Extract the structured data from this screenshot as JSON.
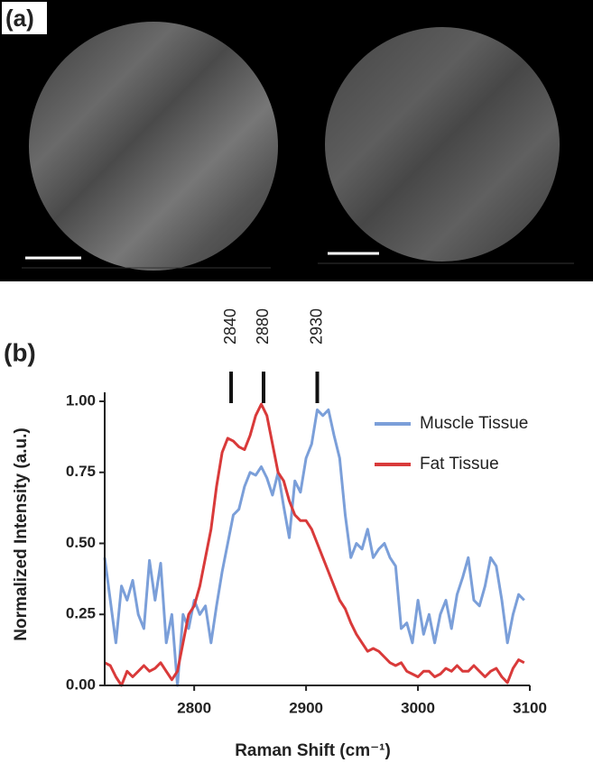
{
  "panel_a_label": "(a)",
  "chart_data": {
    "type": "line",
    "panel_label": "(b)",
    "xlabel": "Raman Shift (cm⁻¹)",
    "ylabel": "Normalized Intensity (a.u.)",
    "xlim": [
      2720,
      3100
    ],
    "xticks": [
      2800,
      2900,
      3000,
      3100
    ],
    "ylim": [
      0,
      1
    ],
    "yticks": [
      {
        "value": 0,
        "label": "0.00"
      },
      {
        "value": 0.25,
        "label": "0.25"
      },
      {
        "value": 0.5,
        "label": "0.50"
      },
      {
        "value": 0.75,
        "label": "0.75"
      },
      {
        "value": 1,
        "label": "1.00"
      }
    ],
    "legend": "upper right",
    "peak_markers": [
      {
        "label": "2840",
        "x": 2833
      },
      {
        "label": "2880",
        "x": 2862
      },
      {
        "label": "2930",
        "x": 2910
      }
    ],
    "x": [
      2720,
      2725,
      2730,
      2735,
      2740,
      2745,
      2750,
      2755,
      2760,
      2765,
      2770,
      2775,
      2780,
      2785,
      2790,
      2795,
      2800,
      2805,
      2810,
      2815,
      2820,
      2825,
      2830,
      2835,
      2840,
      2845,
      2850,
      2855,
      2860,
      2865,
      2870,
      2875,
      2880,
      2885,
      2890,
      2895,
      2900,
      2905,
      2910,
      2915,
      2920,
      2925,
      2930,
      2935,
      2940,
      2945,
      2950,
      2955,
      2960,
      2965,
      2970,
      2975,
      2980,
      2985,
      2990,
      2995,
      3000,
      3005,
      3010,
      3015,
      3020,
      3025,
      3030,
      3035,
      3040,
      3045,
      3050,
      3055,
      3060,
      3065,
      3070,
      3075,
      3080,
      3085,
      3090,
      3095
    ],
    "series": [
      {
        "name": "Muscle Tissue",
        "color": "#7b9fd9",
        "values": [
          0.45,
          0.3,
          0.15,
          0.35,
          0.3,
          0.37,
          0.25,
          0.2,
          0.44,
          0.3,
          0.43,
          0.15,
          0.25,
          0.0,
          0.25,
          0.2,
          0.3,
          0.25,
          0.28,
          0.15,
          0.28,
          0.4,
          0.5,
          0.6,
          0.62,
          0.7,
          0.75,
          0.74,
          0.77,
          0.73,
          0.67,
          0.75,
          0.63,
          0.52,
          0.72,
          0.68,
          0.8,
          0.85,
          0.97,
          0.95,
          0.97,
          0.88,
          0.8,
          0.6,
          0.45,
          0.5,
          0.48,
          0.55,
          0.45,
          0.48,
          0.5,
          0.45,
          0.42,
          0.2,
          0.22,
          0.15,
          0.3,
          0.18,
          0.25,
          0.15,
          0.25,
          0.3,
          0.2,
          0.32,
          0.38,
          0.45,
          0.3,
          0.28,
          0.35,
          0.45,
          0.42,
          0.3,
          0.15,
          0.25,
          0.32,
          0.3
        ]
      },
      {
        "name": "Fat Tissue",
        "color": "#d93a3a",
        "values": [
          0.08,
          0.07,
          0.03,
          0.0,
          0.05,
          0.03,
          0.05,
          0.07,
          0.05,
          0.06,
          0.08,
          0.05,
          0.02,
          0.05,
          0.15,
          0.25,
          0.28,
          0.35,
          0.45,
          0.55,
          0.7,
          0.82,
          0.87,
          0.86,
          0.84,
          0.83,
          0.88,
          0.95,
          0.99,
          0.95,
          0.85,
          0.75,
          0.72,
          0.65,
          0.6,
          0.58,
          0.58,
          0.55,
          0.5,
          0.45,
          0.4,
          0.35,
          0.3,
          0.27,
          0.22,
          0.18,
          0.15,
          0.12,
          0.13,
          0.12,
          0.1,
          0.08,
          0.07,
          0.08,
          0.05,
          0.04,
          0.03,
          0.05,
          0.05,
          0.03,
          0.04,
          0.06,
          0.05,
          0.07,
          0.05,
          0.05,
          0.07,
          0.05,
          0.03,
          0.05,
          0.06,
          0.03,
          0.01,
          0.06,
          0.09,
          0.08
        ]
      }
    ]
  }
}
